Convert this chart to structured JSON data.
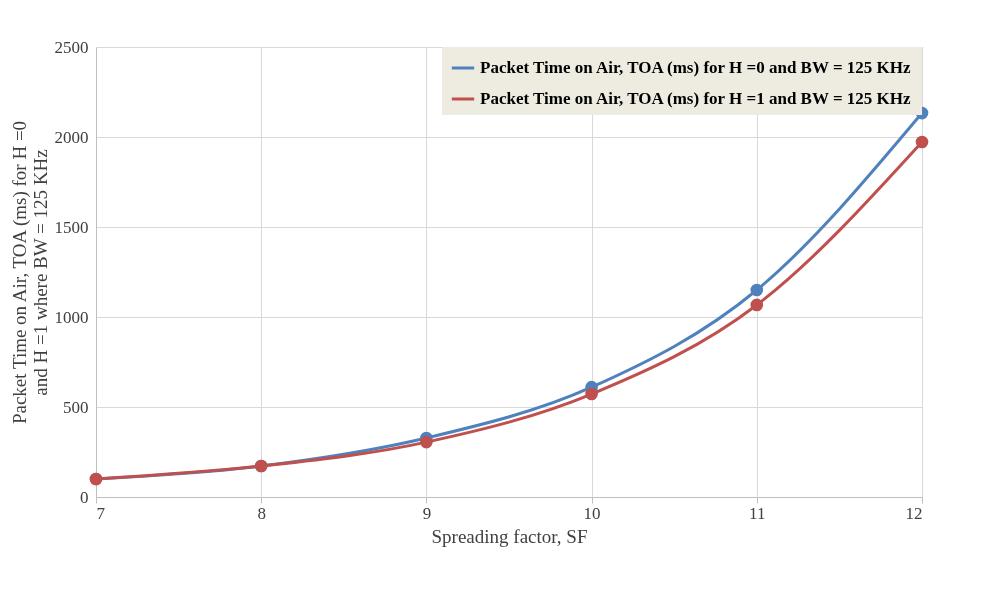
{
  "chart_data": {
    "type": "line",
    "xlabel": "Spreading factor, SF",
    "ylabel": "Packet Time on Air, TOA (ms) for H =0 and H =1 where BW = 125 KHz",
    "x": [
      7,
      8,
      9,
      10,
      11,
      12
    ],
    "series": [
      {
        "name": "Packet Time on Air, TOA (ms) for H =0 and BW = 125 KHz",
        "color": "#4f81bd",
        "values": [
          100,
          172,
          328,
          610,
          1150,
          2133
        ]
      },
      {
        "name": "Packet Time on Air, TOA (ms) for H =1 and BW = 125 KHz",
        "color": "#c0504d",
        "values": [
          100,
          172,
          305,
          572,
          1067,
          1972
        ]
      }
    ],
    "xlim": [
      7,
      12
    ],
    "xticks": [
      7,
      8,
      9,
      10,
      11,
      12
    ],
    "ylim": [
      0,
      2500
    ],
    "yticks": [
      0,
      500,
      1000,
      1500,
      2000,
      2500
    ],
    "grid": true,
    "legend": "top right",
    "marker": "circle",
    "line_style": "solid"
  }
}
